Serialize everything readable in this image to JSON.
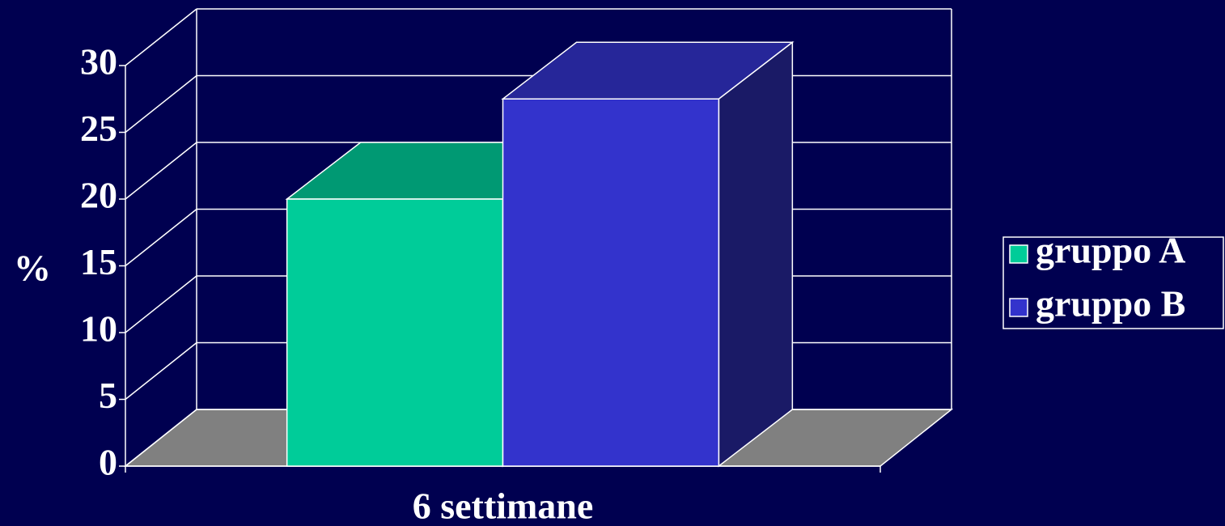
{
  "chart_data": {
    "type": "bar3d",
    "categories": [
      "6 settimane"
    ],
    "series": [
      {
        "name": "gruppo A",
        "color": "#00cc99",
        "values": [
          20
        ]
      },
      {
        "name": "gruppo B",
        "color": "#3333cc",
        "values": [
          27.5
        ]
      }
    ],
    "y_label": "%",
    "ylim": [
      0,
      30
    ],
    "yticks": [
      0,
      5,
      10,
      15,
      20,
      25,
      30
    ],
    "grid": true,
    "legend": "right"
  }
}
